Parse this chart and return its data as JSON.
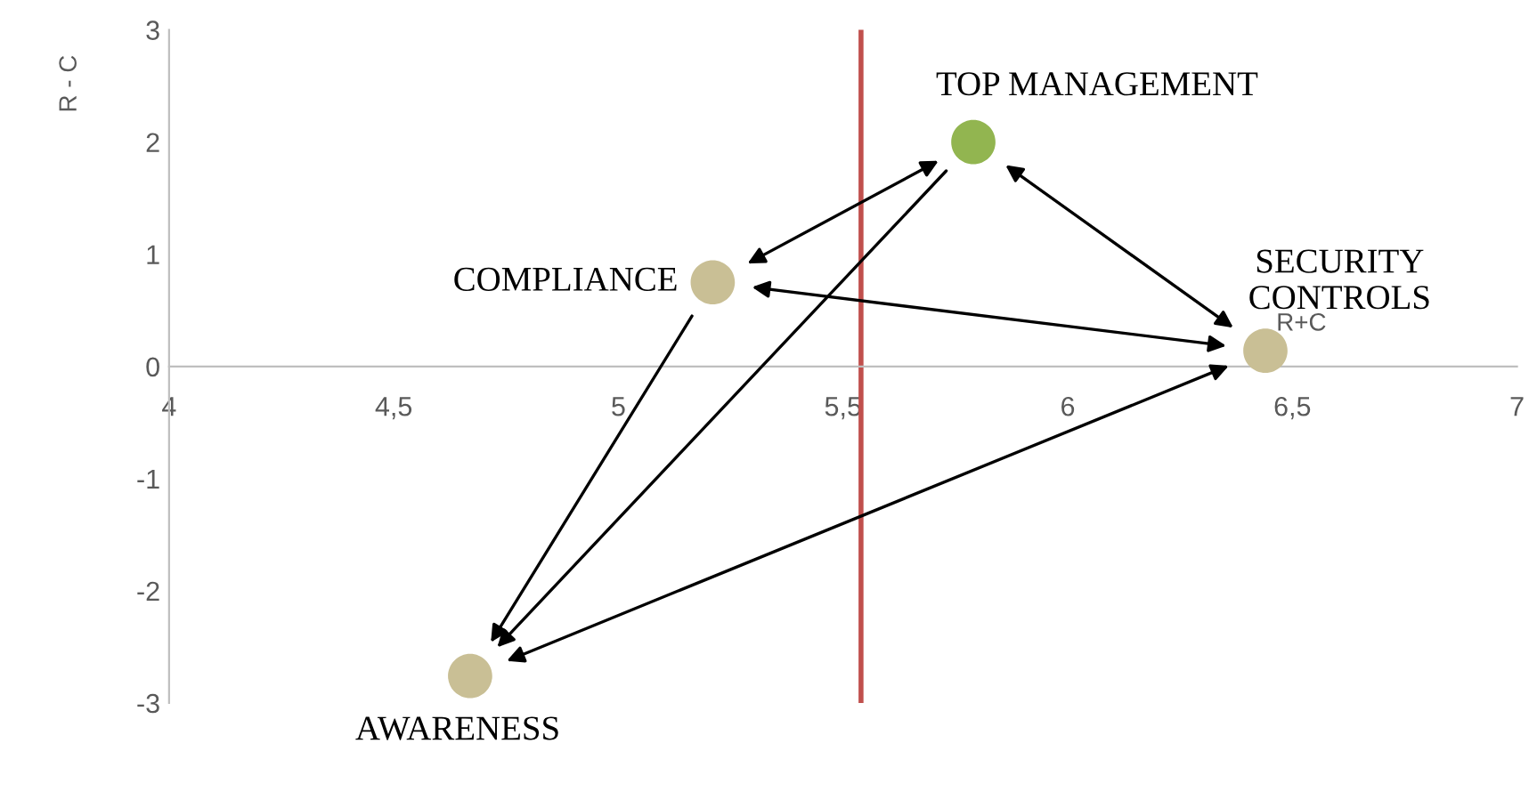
{
  "chart_data": {
    "type": "scatter",
    "xlabel": "R+C",
    "ylabel": "R - C",
    "series": [
      {
        "name": "TOP MANAGEMENT",
        "color": "#92b550",
        "x": [
          5.79
        ],
        "values": [
          2.0
        ]
      },
      {
        "name": "COMPLIANCE",
        "color": "#c9bf95",
        "x": [
          5.21
        ],
        "values": [
          0.75
        ]
      },
      {
        "name": "SECURITY\nCONTROLS",
        "color": "#c9bf95",
        "x": [
          6.44
        ],
        "values": [
          0.14
        ]
      },
      {
        "name": "AWARENESS",
        "color": "#c9bf95",
        "x": [
          4.67
        ],
        "values": [
          -2.76
        ]
      }
    ],
    "xlim": [
      4,
      7
    ],
    "xticks": [
      4,
      {
        "value": 4.5,
        "label": "4,5"
      },
      5,
      {
        "value": 5.5,
        "label": "5,5"
      },
      6,
      {
        "value": 6.5,
        "label": "6,5"
      },
      7
    ],
    "ylim": [
      -3,
      3
    ],
    "yticks": [
      -3,
      -2,
      -1,
      0,
      1,
      2,
      3
    ],
    "ref_lines": [
      {
        "axis": "x",
        "value": 5.54,
        "color": "#c0504d"
      }
    ],
    "marker": "circle",
    "grid": false,
    "legend": false
  }
}
